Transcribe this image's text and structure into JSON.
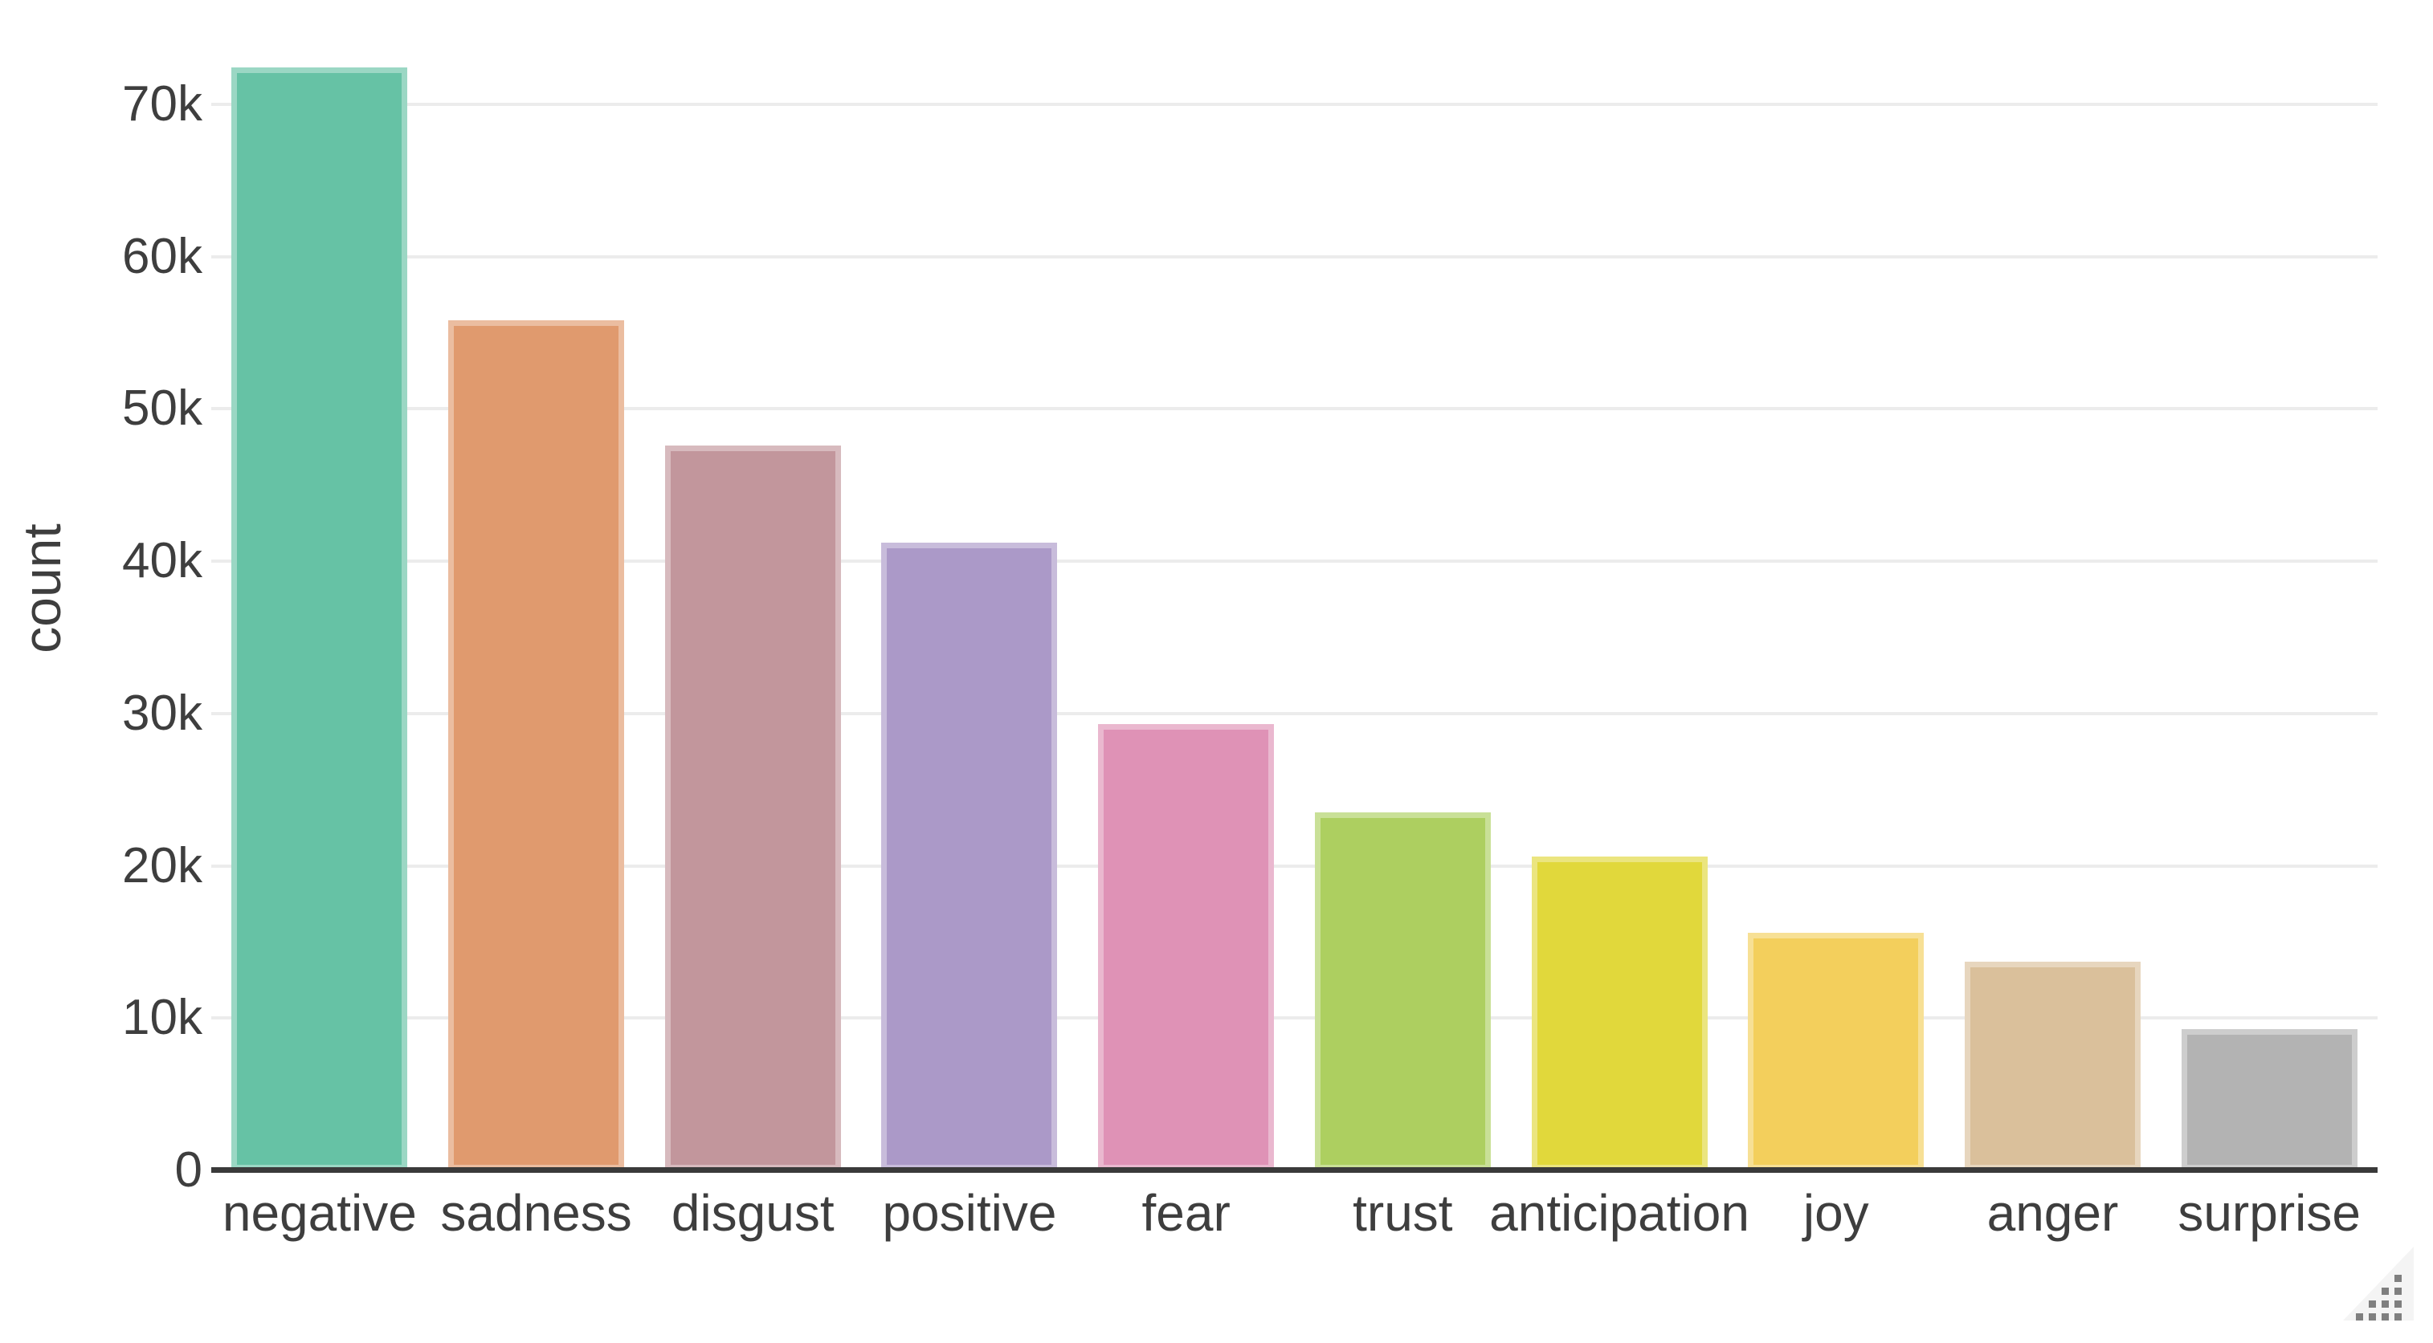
{
  "chart_data": {
    "type": "bar",
    "title": "",
    "categories": [
      "negative",
      "sadness",
      "disgust",
      "positive",
      "fear",
      "trust",
      "anticipation",
      "joy",
      "anger",
      "surprise"
    ],
    "values": [
      72400,
      55800,
      47600,
      41200,
      29300,
      23500,
      20600,
      15600,
      13700,
      9300
    ],
    "bar_colors": [
      "#66c2a5",
      "#e09a6e",
      "#c2969c",
      "#ab99c8",
      "#df92b6",
      "#adcf60",
      "#e1d83b",
      "#f3cf5c",
      "#dac09b",
      "#b3b3b3"
    ],
    "xlabel": "",
    "ylabel": "count",
    "ylim": [
      0,
      76900
    ],
    "yticks": [
      {
        "value": 0,
        "label": "0"
      },
      {
        "value": 10000,
        "label": "10k"
      },
      {
        "value": 20000,
        "label": "20k"
      },
      {
        "value": 30000,
        "label": "30k"
      },
      {
        "value": 40000,
        "label": "40k"
      },
      {
        "value": 50000,
        "label": "50k"
      },
      {
        "value": 60000,
        "label": "60k"
      },
      {
        "value": 70000,
        "label": "70k"
      }
    ],
    "grid": "horizontal",
    "legend": "none"
  },
  "colors": {
    "background": "#ffffff",
    "gridline": "#ececec",
    "axis_line": "#3a3a3a",
    "tick_text": "#3e3e3e",
    "axis_title_text": "#3e3e3e",
    "grip_dot": "#7f7f7f",
    "grip_triangle": "#f4f4f4"
  },
  "icons": {
    "resize_grip": "resize-grip"
  }
}
